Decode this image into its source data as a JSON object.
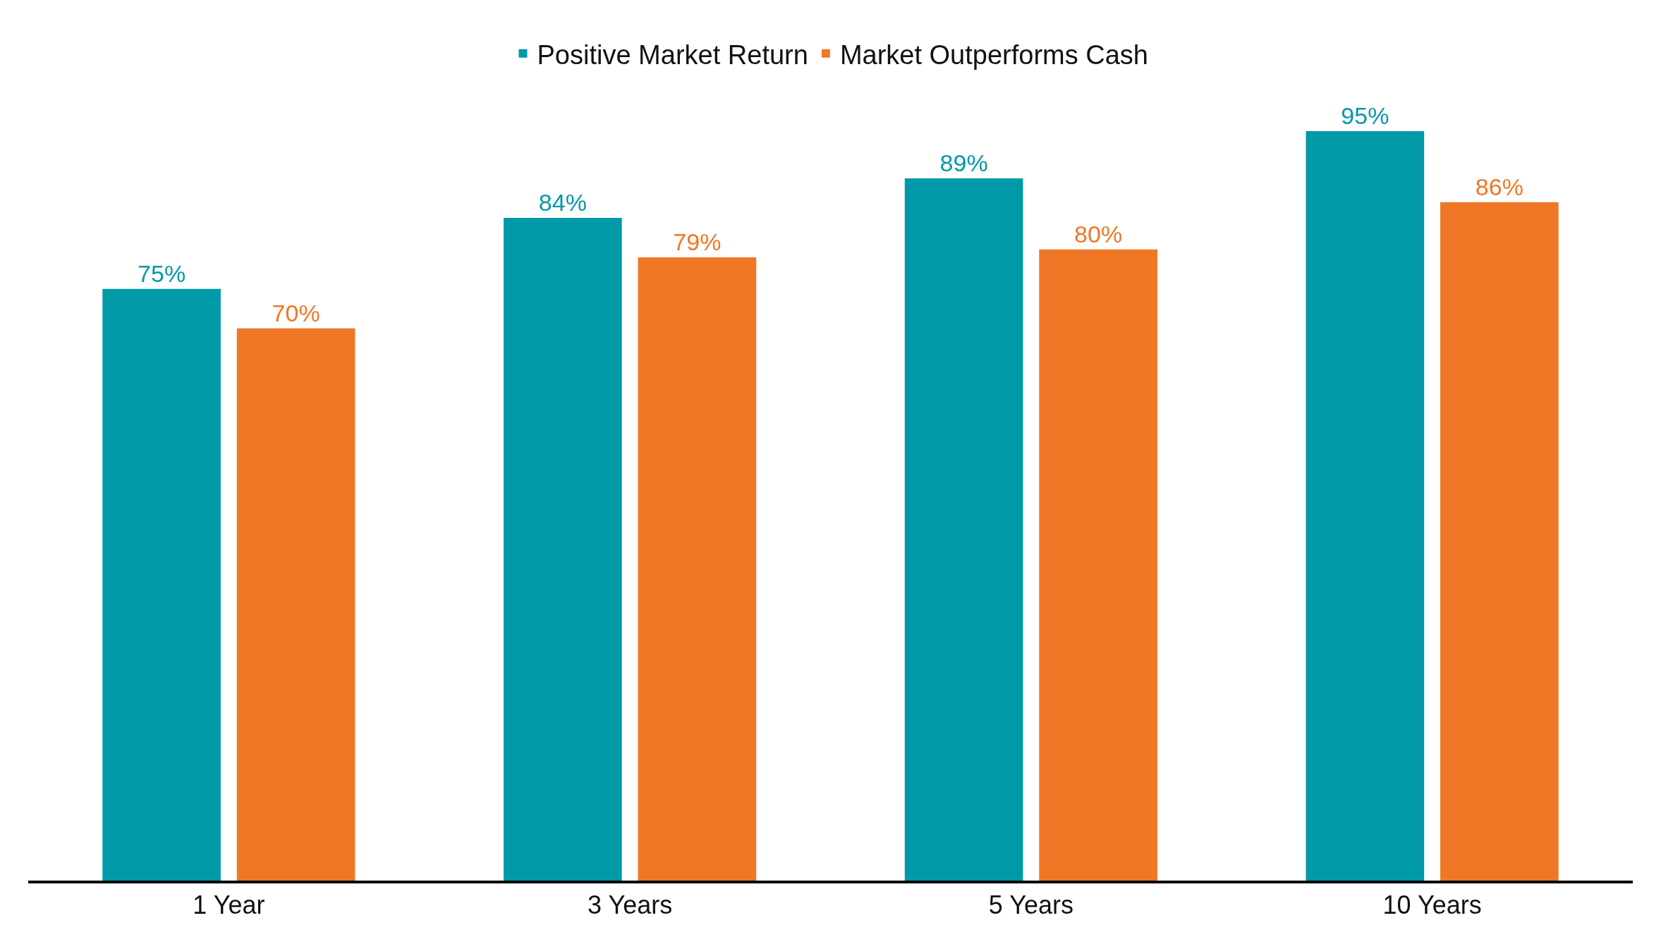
{
  "chart_data": {
    "type": "bar",
    "categories": [
      "1 Year",
      "3 Years",
      "5 Years",
      "10 Years"
    ],
    "series": [
      {
        "name": "Positive Market Return",
        "color": "#0099a8",
        "values": [
          75,
          84,
          89,
          95
        ],
        "value_labels": [
          "75%",
          "84%",
          "89%",
          "95%"
        ]
      },
      {
        "name": "Market Outperforms Cash",
        "color": "#f07726",
        "values": [
          70,
          79,
          80,
          86
        ],
        "value_labels": [
          "70%",
          "79%",
          "80%",
          "86%"
        ]
      }
    ],
    "legend": "top"
  }
}
